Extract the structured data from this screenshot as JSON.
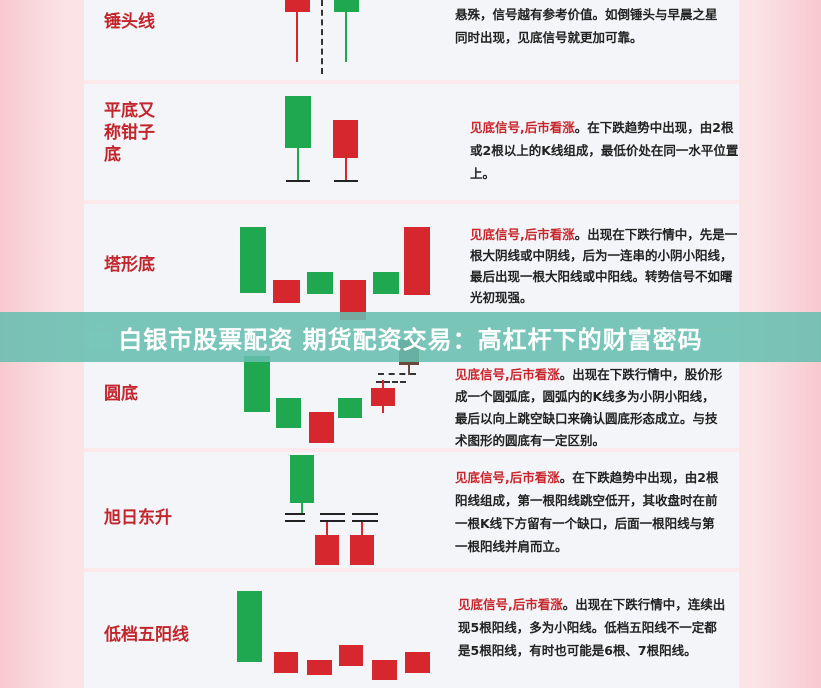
{
  "banner": {
    "title": "白银市股票配资 期货配资交易：高杠杆下的财富密码"
  },
  "colors": {
    "bullish": "#1fa84f",
    "bearish": "#d6262e",
    "signal": "#c8262c",
    "banner": "#68beb0"
  },
  "patterns": [
    {
      "name": "锤头线",
      "signal": "",
      "text": "悬殊，信号越有参考价值。如倒锤头与早晨之星同时出现，见底信号就更加可靠。"
    },
    {
      "name": "平底又称钳子底",
      "signal": "见底信号,后市看涨",
      "text": "。在下跌趋势中出现，由2根或2根以上的K线组成，最低价处在同一水平位置上。"
    },
    {
      "name": "塔形底",
      "signal": "见底信号,后市看涨",
      "text": "。出现在下跌行情中，先是一根大阴线或中阴线，后为一连串的小阴小阳线，最后出现一根大阳线或中阳线。转势信号不如曙光初现强。"
    },
    {
      "name": "圆底",
      "signal": "见底信号,后市看涨",
      "text": "。出现在下跌行情中，股价形成一个圆弧底，圆弧内的K线多为小阴小阳线，最后以向上跳空缺口来确认圆底形态成立。与技术图形的圆底有一定区别。"
    },
    {
      "name": "旭日东升",
      "signal": "见底信号,后市看涨",
      "text": "。在下跌趋势中出现，由2根阳线组成，第一根阳线跳空低开，其收盘时在前一根K线下方留有一个缺口，后面一根阳线与第一根阳线并肩而立。"
    },
    {
      "name": "低档五阳线",
      "signal": "见底信号,后市看涨",
      "text": "。出现在下跌行情中，连续出现5根阳线，多为小阳线。低档五阳线不一定都是5根阳线，有时也可能是6根、7根阳线。"
    }
  ]
}
